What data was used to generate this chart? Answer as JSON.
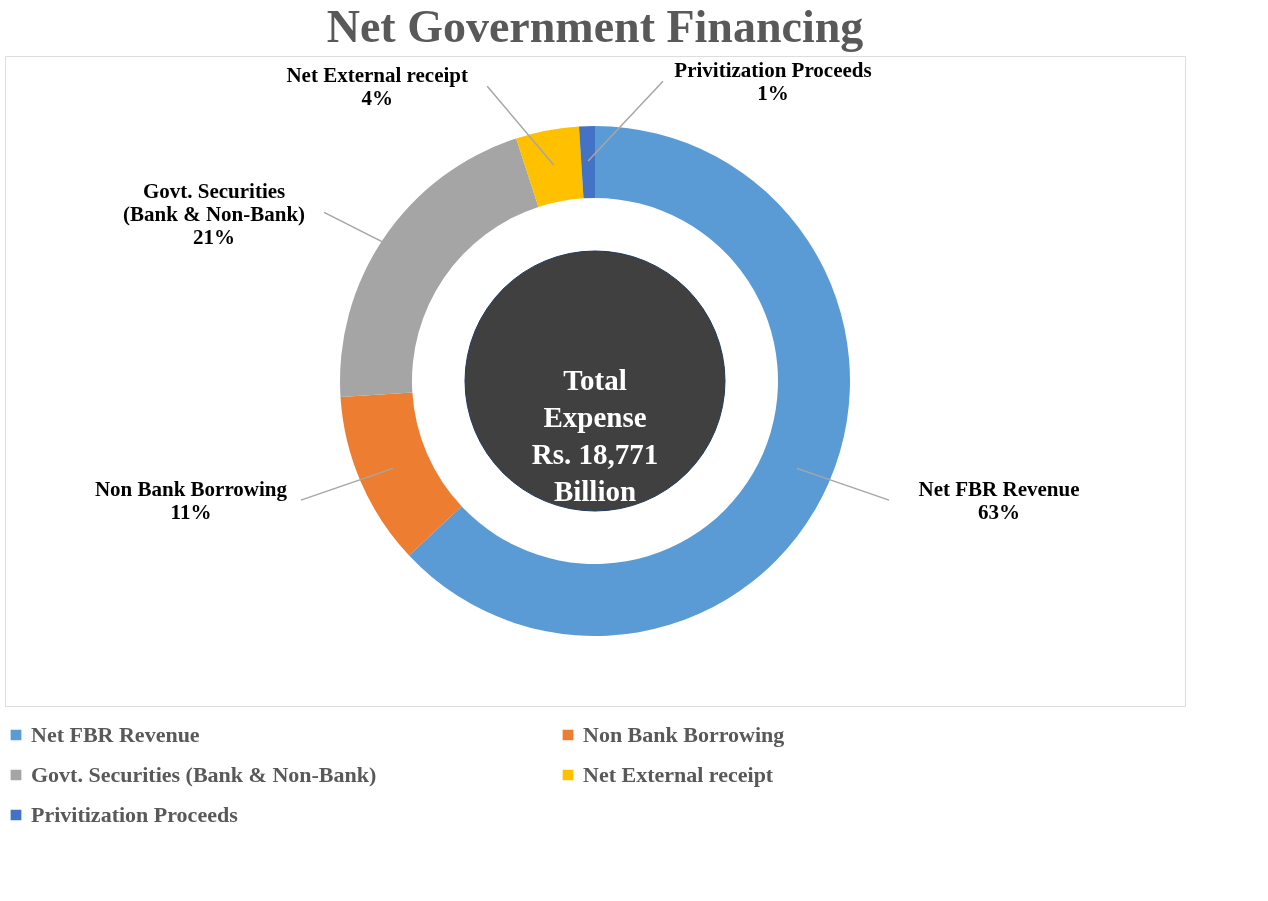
{
  "chart_data": {
    "type": "donut",
    "title": "Net Government Financing",
    "categories": [
      "Net FBR Revenue",
      "Non Bank Borrowing",
      "Govt. Securities (Bank & Non-Bank)",
      "Net External receipt",
      "Privitization Proceeds"
    ],
    "values": [
      63,
      11,
      21,
      4,
      1
    ],
    "value_labels": [
      "63%",
      "11%",
      "21%",
      "4%",
      "1%"
    ],
    "colors": [
      "#5b9bd5",
      "#ed7d31",
      "#a5a5a5",
      "#ffc000",
      "#4472c4"
    ],
    "annotations": [
      "Total Expense Rs. 18,771 Billion"
    ],
    "legend": "bottom"
  }
}
